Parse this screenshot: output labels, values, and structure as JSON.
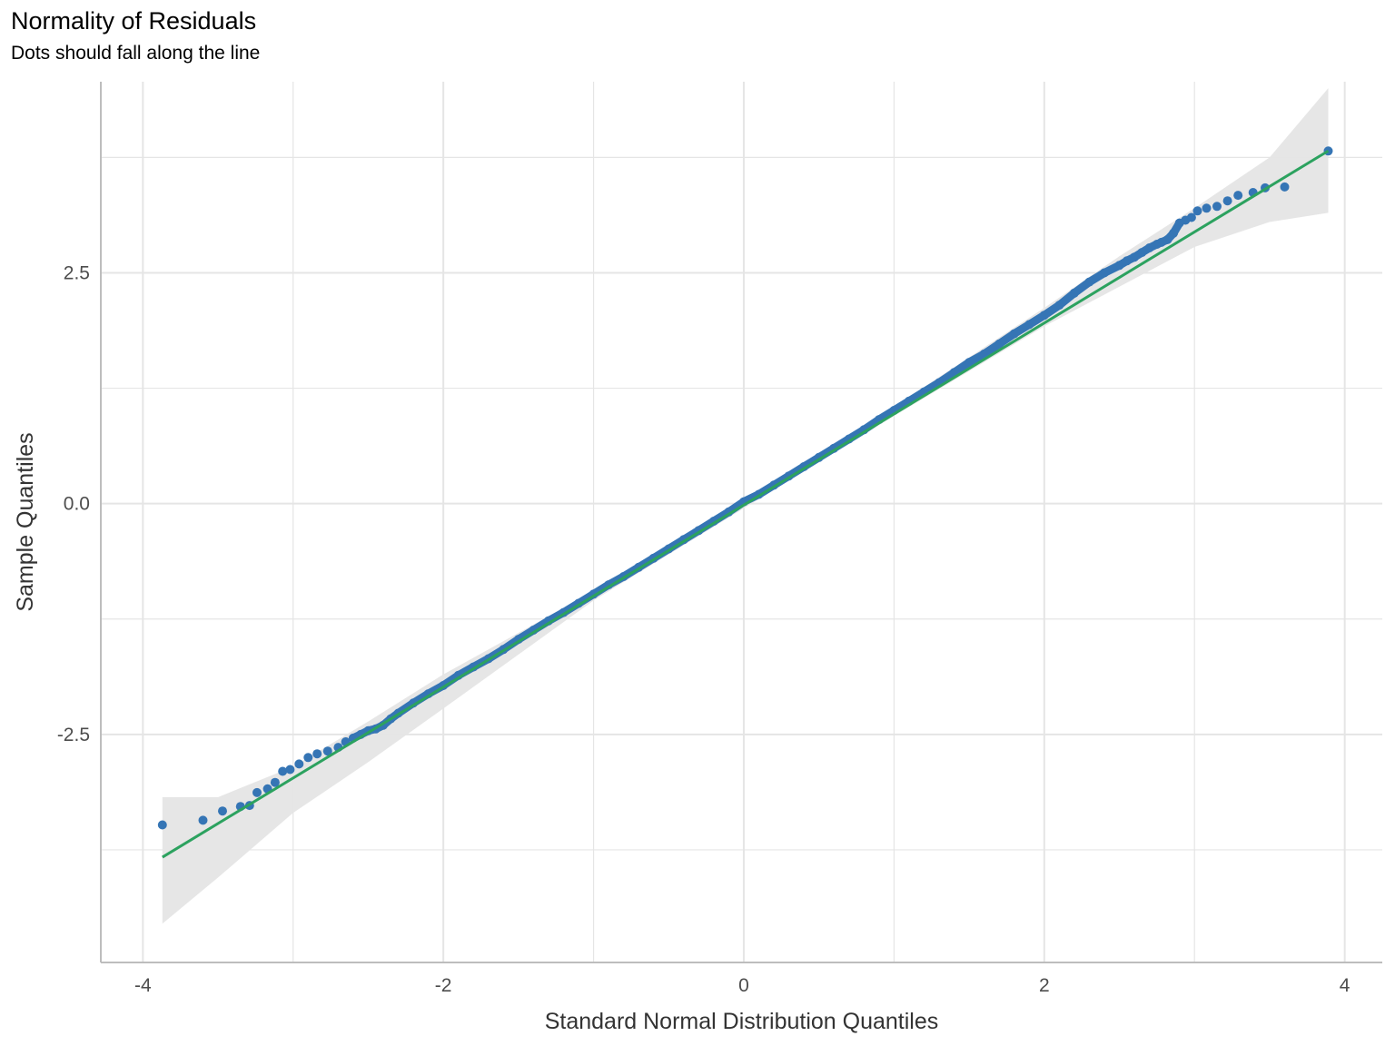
{
  "chart_data": {
    "type": "scatter",
    "title": "Normality of Residuals",
    "subtitle": "Dots should fall along the line",
    "xlabel": "Standard Normal Distribution Quantiles",
    "ylabel": "Sample Quantiles",
    "xlim": [
      -4.28,
      4.25
    ],
    "ylim": [
      -4.97,
      4.57
    ],
    "x_ticks": [
      -4,
      -2,
      0,
      2,
      4
    ],
    "x_tick_labels": [
      "-4",
      "-2",
      "0",
      "2",
      "4"
    ],
    "y_ticks": [
      -2.5,
      0,
      2.5
    ],
    "y_tick_labels": [
      "-2.5",
      "0.0",
      "2.5"
    ],
    "grid": true,
    "colors": {
      "points": "#3575b5",
      "line": "#2ca25f",
      "band": "#e5e5e5",
      "grid": "#e5e5e5",
      "axis": "#bdbdbd"
    },
    "reference_line": {
      "x": [
        -3.87,
        3.89
      ],
      "y": [
        -3.83,
        3.82
      ]
    },
    "confidence_band": {
      "x": [
        -3.87,
        -3.5,
        -3.0,
        -2.5,
        -2.0,
        -1.0,
        0.0,
        1.0,
        2.0,
        2.5,
        3.0,
        3.5,
        3.89
      ],
      "lower": [
        -4.55,
        -4.05,
        -3.35,
        -2.8,
        -2.22,
        -1.05,
        -0.05,
        0.95,
        1.92,
        2.35,
        2.78,
        3.05,
        3.15
      ],
      "upper": [
        -3.18,
        -3.18,
        -2.85,
        -2.36,
        -1.85,
        -0.95,
        0.05,
        1.05,
        2.12,
        2.68,
        3.2,
        3.75,
        4.5
      ]
    },
    "points": {
      "x": [
        -3.87,
        -3.6,
        -3.47,
        -3.35,
        -3.29,
        -3.24,
        -3.17,
        -3.12,
        -3.07,
        -3.02,
        -2.96,
        -2.9,
        -2.84,
        -2.77,
        -2.7,
        -2.65,
        -2.6,
        -2.55,
        -2.5,
        -2.45,
        -2.4,
        -2.35,
        -2.3,
        -2.2,
        -2.1,
        -2.0,
        -1.9,
        -1.8,
        -1.7,
        -1.6,
        -1.5,
        -1.4,
        -1.3,
        -1.2,
        -1.1,
        -1.0,
        -0.9,
        -0.8,
        -0.7,
        -0.6,
        -0.5,
        -0.4,
        -0.3,
        -0.2,
        -0.1,
        0.0,
        0.1,
        0.2,
        0.3,
        0.4,
        0.5,
        0.6,
        0.7,
        0.8,
        0.9,
        1.0,
        1.1,
        1.2,
        1.3,
        1.4,
        1.5,
        1.6,
        1.7,
        1.8,
        1.9,
        2.0,
        2.1,
        2.2,
        2.3,
        2.4,
        2.5,
        2.55,
        2.6,
        2.65,
        2.7,
        2.75,
        2.78,
        2.82,
        2.86,
        2.9,
        2.94,
        2.98,
        3.02,
        3.08,
        3.15,
        3.22,
        3.29,
        3.39,
        3.47,
        3.6,
        3.89
      ],
      "y": [
        -3.48,
        -3.43,
        -3.33,
        -3.28,
        -3.27,
        -3.13,
        -3.09,
        -3.02,
        -2.9,
        -2.88,
        -2.82,
        -2.75,
        -2.71,
        -2.68,
        -2.64,
        -2.58,
        -2.54,
        -2.5,
        -2.46,
        -2.44,
        -2.4,
        -2.33,
        -2.27,
        -2.16,
        -2.06,
        -1.97,
        -1.86,
        -1.77,
        -1.68,
        -1.58,
        -1.47,
        -1.37,
        -1.27,
        -1.18,
        -1.08,
        -0.98,
        -0.88,
        -0.79,
        -0.69,
        -0.59,
        -0.49,
        -0.39,
        -0.29,
        -0.19,
        -0.09,
        0.02,
        0.1,
        0.2,
        0.3,
        0.4,
        0.5,
        0.6,
        0.7,
        0.8,
        0.91,
        1.01,
        1.11,
        1.21,
        1.31,
        1.42,
        1.53,
        1.62,
        1.73,
        1.84,
        1.94,
        2.04,
        2.15,
        2.28,
        2.4,
        2.5,
        2.58,
        2.63,
        2.67,
        2.72,
        2.77,
        2.81,
        2.83,
        2.86,
        2.93,
        3.04,
        3.07,
        3.1,
        3.17,
        3.2,
        3.22,
        3.28,
        3.34,
        3.37,
        3.42,
        3.43,
        3.82
      ]
    }
  }
}
